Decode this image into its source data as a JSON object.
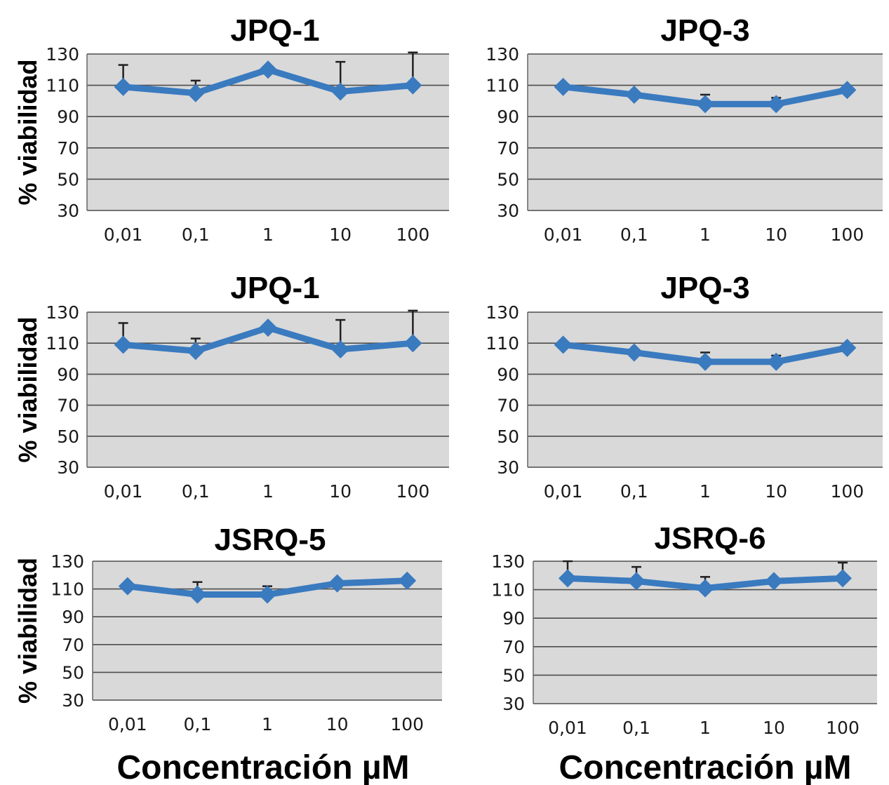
{
  "figure": {
    "xlabels": [
      "Concentración µM",
      "Concentración µM"
    ]
  },
  "colors": {
    "series": "#3a7abf",
    "plot_bg": "#d9d9d9",
    "grid": "#4d4d4d",
    "error_bar": "#202020"
  },
  "chart_data": [
    {
      "type": "line",
      "title": "JPQ-1",
      "ylabel": "% viabilidad",
      "xlabel": "",
      "categories": [
        "0,01",
        "0,1",
        "1",
        "10",
        "100"
      ],
      "yticks": [
        "30",
        "50",
        "70",
        "90",
        "110",
        "130"
      ],
      "ylim": [
        30,
        130
      ],
      "grid": true,
      "series": [
        {
          "values": [
            109,
            105,
            120,
            106,
            110
          ],
          "error": [
            14,
            8,
            0,
            19,
            21
          ]
        }
      ]
    },
    {
      "type": "line",
      "title": "JPQ-3",
      "ylabel": "",
      "xlabel": "",
      "categories": [
        "0,01",
        "0,1",
        "1",
        "10",
        "100"
      ],
      "yticks": [
        "30",
        "50",
        "70",
        "90",
        "110",
        "130"
      ],
      "ylim": [
        30,
        130
      ],
      "grid": true,
      "series": [
        {
          "values": [
            109,
            104,
            98,
            98,
            107
          ],
          "error": [
            0,
            0,
            6,
            4,
            0
          ]
        }
      ]
    },
    {
      "type": "line",
      "title": "JPQ-1",
      "ylabel": "% viabilidad",
      "xlabel": "",
      "categories": [
        "0,01",
        "0,1",
        "1",
        "10",
        "100"
      ],
      "yticks": [
        "30",
        "50",
        "70",
        "90",
        "110",
        "130"
      ],
      "ylim": [
        30,
        130
      ],
      "grid": true,
      "series": [
        {
          "values": [
            109,
            105,
            120,
            106,
            110
          ],
          "error": [
            14,
            8,
            0,
            19,
            21
          ]
        }
      ]
    },
    {
      "type": "line",
      "title": "JPQ-3",
      "ylabel": "",
      "xlabel": "",
      "categories": [
        "0,01",
        "0,1",
        "1",
        "10",
        "100"
      ],
      "yticks": [
        "30",
        "50",
        "70",
        "90",
        "110",
        "130"
      ],
      "ylim": [
        30,
        130
      ],
      "grid": true,
      "series": [
        {
          "values": [
            109,
            104,
            98,
            98,
            107
          ],
          "error": [
            0,
            0,
            6,
            4,
            0
          ]
        }
      ]
    },
    {
      "type": "line",
      "title": "JSRQ-5",
      "ylabel": "% viabilidad",
      "xlabel": "Concentración µM",
      "categories": [
        "0,01",
        "0,1",
        "1",
        "10",
        "100"
      ],
      "yticks": [
        "30",
        "50",
        "70",
        "90",
        "110",
        "130"
      ],
      "ylim": [
        30,
        130
      ],
      "grid": true,
      "series": [
        {
          "values": [
            112,
            106,
            106,
            114,
            116
          ],
          "error": [
            0,
            9,
            6,
            0,
            0
          ]
        }
      ]
    },
    {
      "type": "line",
      "title": "JSRQ-6",
      "ylabel": "",
      "xlabel": "Concentración µM",
      "categories": [
        "0,01",
        "0,1",
        "1",
        "10",
        "100"
      ],
      "yticks": [
        "30",
        "50",
        "70",
        "90",
        "110",
        "130"
      ],
      "ylim": [
        30,
        130
      ],
      "grid": true,
      "series": [
        {
          "values": [
            118,
            116,
            111,
            116,
            118
          ],
          "error": [
            12,
            10,
            8,
            0,
            11
          ]
        }
      ]
    }
  ]
}
